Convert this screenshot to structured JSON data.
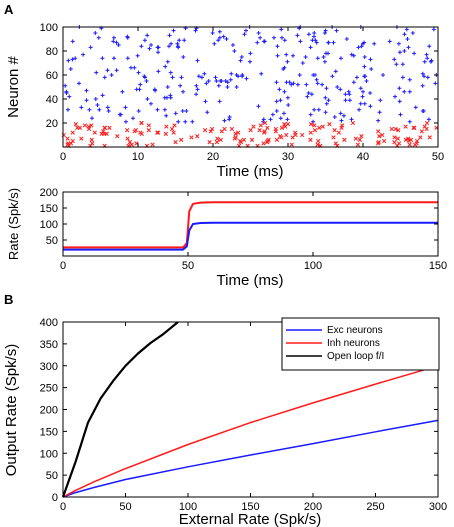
{
  "colors": {
    "exc": "#1a1aff",
    "inh": "#ff1a1a",
    "black": "#000000"
  },
  "panels": {
    "a": "A",
    "b": "B"
  },
  "chart_data": [
    {
      "panel": "A",
      "type": "scatter",
      "xlabel": "Time (ms)",
      "ylabel": "Neuron #",
      "xlim": [
        0,
        50
      ],
      "ylim": [
        0,
        100
      ],
      "xticks": [
        0,
        10,
        20,
        30,
        40,
        50
      ],
      "yticks": [
        20,
        40,
        60,
        80,
        100
      ],
      "series": [
        {
          "color": "#1a1aff",
          "marker": "+",
          "neuron_range": [
            21,
            100
          ],
          "approx_spikes_per_neuron": 4
        },
        {
          "color": "#ff1a1a",
          "marker": "x",
          "neuron_range": [
            1,
            20
          ],
          "approx_spikes_per_neuron": 8
        }
      ]
    },
    {
      "panel": "A",
      "type": "line",
      "xlabel": "Time (ms)",
      "ylabel": "Rate (Spk/s)",
      "xlim": [
        0,
        150
      ],
      "ylim": [
        0,
        200
      ],
      "xticks": [
        0,
        50,
        100,
        150
      ],
      "yticks": [
        50,
        100,
        150,
        200
      ],
      "series": [
        {
          "color": "#ff1a1a",
          "x": [
            0,
            48,
            49.5,
            50.5,
            52,
            55,
            60,
            150
          ],
          "y": [
            27,
            27,
            40,
            140,
            163,
            167,
            168,
            168
          ]
        },
        {
          "color": "#1a1aff",
          "x": [
            0,
            48,
            49.5,
            50.5,
            52,
            55,
            60,
            150
          ],
          "y": [
            20,
            20,
            30,
            80,
            100,
            103,
            104,
            104
          ]
        }
      ]
    },
    {
      "panel": "B",
      "type": "line",
      "xlabel": "External Rate (Spk/s)",
      "ylabel": "Output Rate (Spk/s)",
      "xlim": [
        0,
        300
      ],
      "ylim": [
        0,
        400
      ],
      "xticks": [
        0,
        50,
        100,
        150,
        200,
        250,
        300
      ],
      "yticks": [
        0,
        50,
        100,
        150,
        200,
        250,
        300,
        350,
        400
      ],
      "legend_position": "top-right",
      "series": [
        {
          "name": "Exc neurons",
          "color": "#1a1aff",
          "x": [
            0,
            10,
            25,
            50,
            100,
            150,
            200,
            250,
            300
          ],
          "y": [
            0,
            10,
            22,
            40,
            69,
            96,
            122,
            149,
            175
          ]
        },
        {
          "name": "Inh neurons",
          "color": "#ff1a1a",
          "x": [
            0,
            10,
            25,
            50,
            100,
            150,
            200,
            250,
            300
          ],
          "y": [
            0,
            15,
            35,
            65,
            120,
            170,
            215,
            258,
            300
          ]
        },
        {
          "name": "Open loop f/I",
          "color": "#000000",
          "x": [
            0,
            10,
            20,
            30,
            40,
            50,
            60,
            70,
            80,
            92
          ],
          "y": [
            0,
            80,
            170,
            225,
            265,
            300,
            328,
            352,
            372,
            400
          ]
        }
      ]
    }
  ]
}
